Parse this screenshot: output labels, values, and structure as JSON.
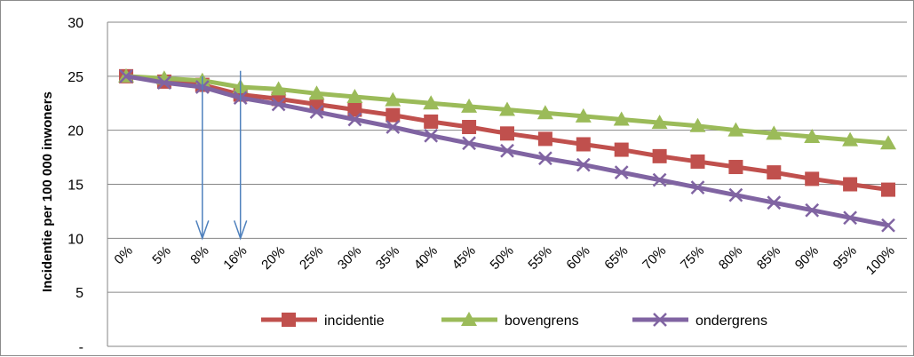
{
  "chart_data": {
    "type": "line",
    "ylabel": "Incidentie per 100 000 inwoners",
    "xlabel": "",
    "ylim": [
      0,
      30
    ],
    "yticks": [
      {
        "value": 0,
        "label": "-"
      },
      {
        "value": 5,
        "label": "5"
      },
      {
        "value": 10,
        "label": "10"
      },
      {
        "value": 15,
        "label": "15"
      },
      {
        "value": 20,
        "label": "20"
      },
      {
        "value": 25,
        "label": "25"
      },
      {
        "value": 30,
        "label": "30"
      }
    ],
    "categories": [
      "0%",
      "5%",
      "8%",
      "16%",
      "20%",
      "25%",
      "30%",
      "35%",
      "40%",
      "45%",
      "50%",
      "55%",
      "60%",
      "65%",
      "70%",
      "75%",
      "80%",
      "85%",
      "90%",
      "95%",
      "100%"
    ],
    "series": [
      {
        "name": "incidentie",
        "color": "#c0504d",
        "marker": "square",
        "values": [
          25.0,
          24.5,
          24.2,
          23.3,
          22.9,
          22.4,
          21.9,
          21.4,
          20.8,
          20.3,
          19.7,
          19.2,
          18.7,
          18.2,
          17.6,
          17.1,
          16.6,
          16.1,
          15.5,
          15.0,
          14.5
        ]
      },
      {
        "name": "bovengrens",
        "color": "#9bbb59",
        "marker": "triangle",
        "values": [
          25.0,
          24.8,
          24.6,
          24.0,
          23.8,
          23.4,
          23.1,
          22.8,
          22.5,
          22.2,
          21.9,
          21.6,
          21.3,
          21.0,
          20.7,
          20.4,
          20.0,
          19.7,
          19.4,
          19.1,
          18.8
        ]
      },
      {
        "name": "ondergrens",
        "color": "#8064a2",
        "marker": "x",
        "values": [
          25.0,
          24.4,
          24.0,
          23.0,
          22.4,
          21.7,
          21.0,
          20.3,
          19.5,
          18.8,
          18.1,
          17.4,
          16.8,
          16.1,
          15.4,
          14.7,
          14.0,
          13.3,
          12.6,
          11.9,
          11.2
        ]
      }
    ],
    "annotations": [
      {
        "type": "arrow",
        "category": "8%",
        "from_y": 25.0,
        "to_y": 10.0,
        "color": "#4f81bd"
      },
      {
        "type": "arrow",
        "category": "16%",
        "from_y": 25.5,
        "to_y": 10.0,
        "color": "#4f81bd"
      }
    ],
    "grid": {
      "horizontal": true,
      "vertical": false
    },
    "legend": {
      "position": "inside-bottom-center"
    }
  }
}
